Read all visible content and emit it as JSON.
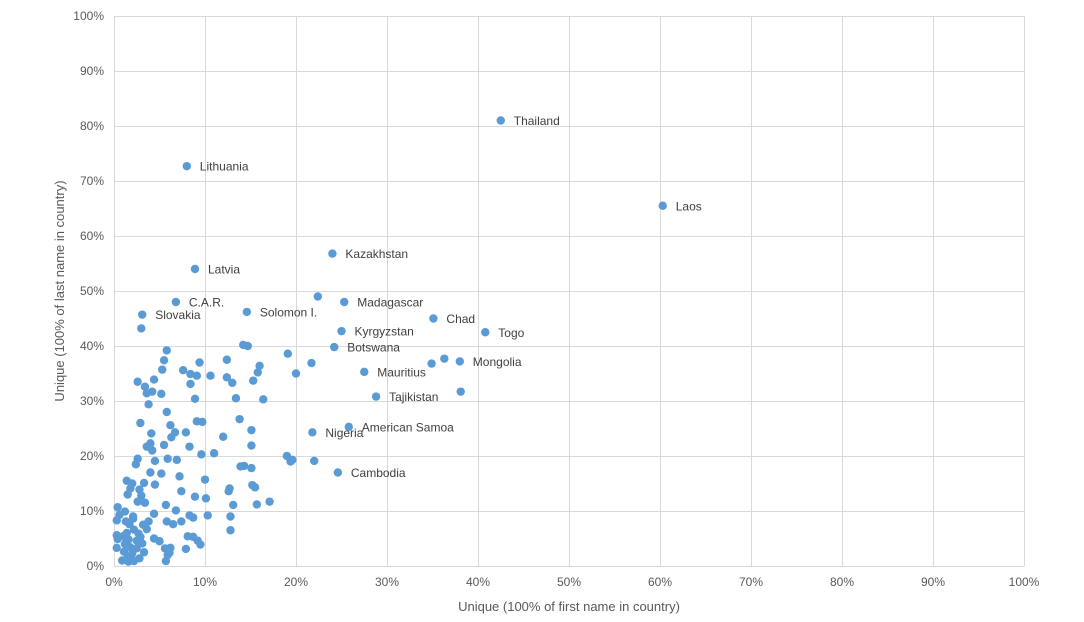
{
  "chart_data": {
    "type": "scatter",
    "title": "",
    "xlabel": "Unique (100% of first name in country)",
    "ylabel": "Unique (100% of last name in country)",
    "xlim": [
      0,
      100
    ],
    "ylim": [
      0,
      100
    ],
    "x_ticks": [
      "0%",
      "10%",
      "20%",
      "30%",
      "40%",
      "50%",
      "60%",
      "70%",
      "80%",
      "90%",
      "100%"
    ],
    "y_ticks": [
      "0%",
      "10%",
      "20%",
      "30%",
      "40%",
      "50%",
      "60%",
      "70%",
      "80%",
      "90%",
      "100%"
    ],
    "grid": true,
    "legend": "none",
    "point_color": "#5b9bd5",
    "labeled_points": [
      {
        "label": "Thailand",
        "x": 42.5,
        "y": 81.0
      },
      {
        "label": "Lithuania",
        "x": 8.0,
        "y": 72.7
      },
      {
        "label": "Laos",
        "x": 60.3,
        "y": 65.5
      },
      {
        "label": "Kazakhstan",
        "x": 24.0,
        "y": 56.8
      },
      {
        "label": "Latvia",
        "x": 8.9,
        "y": 54.0
      },
      {
        "label": "C.A.R.",
        "x": 6.8,
        "y": 48.0
      },
      {
        "label": "Madagascar",
        "x": 25.3,
        "y": 48.0
      },
      {
        "label": "Slovakia",
        "x": 3.1,
        "y": 45.7
      },
      {
        "label": "Solomon I.",
        "x": 14.6,
        "y": 46.2
      },
      {
        "label": "Chad",
        "x": 35.1,
        "y": 45.0
      },
      {
        "label": "Kyrgyzstan",
        "x": 25.0,
        "y": 42.7
      },
      {
        "label": "Togo",
        "x": 40.8,
        "y": 42.5
      },
      {
        "label": "Botswana",
        "x": 24.2,
        "y": 39.8
      },
      {
        "label": "Mongolia",
        "x": 38.0,
        "y": 37.2
      },
      {
        "label": "Mauritius",
        "x": 27.5,
        "y": 35.3
      },
      {
        "label": "Tajikistan",
        "x": 28.8,
        "y": 30.8
      },
      {
        "label": "American Samoa",
        "x": 25.8,
        "y": 25.3
      },
      {
        "label": "Nigeria",
        "x": 21.8,
        "y": 24.3
      },
      {
        "label": "Cambodia",
        "x": 24.6,
        "y": 17.0
      }
    ],
    "points": [
      [
        22.4,
        49.0
      ],
      [
        3.0,
        43.2
      ],
      [
        5.8,
        39.2
      ],
      [
        14.2,
        40.2
      ],
      [
        14.7,
        40.0
      ],
      [
        34.9,
        36.8
      ],
      [
        36.3,
        37.7
      ],
      [
        38.1,
        31.7
      ],
      [
        19.1,
        38.6
      ],
      [
        21.7,
        36.9
      ],
      [
        5.5,
        37.4
      ],
      [
        9.4,
        37.0
      ],
      [
        12.4,
        37.5
      ],
      [
        16.0,
        36.4
      ],
      [
        5.3,
        35.7
      ],
      [
        7.6,
        35.6
      ],
      [
        8.4,
        34.9
      ],
      [
        10.6,
        34.6
      ],
      [
        15.8,
        35.2
      ],
      [
        20.0,
        35.0
      ],
      [
        9.1,
        34.6
      ],
      [
        12.4,
        34.3
      ],
      [
        15.3,
        33.7
      ],
      [
        2.6,
        33.5
      ],
      [
        4.4,
        33.9
      ],
      [
        8.4,
        33.1
      ],
      [
        13.0,
        33.3
      ],
      [
        3.4,
        32.6
      ],
      [
        3.6,
        31.4
      ],
      [
        4.2,
        31.7
      ],
      [
        5.2,
        31.3
      ],
      [
        8.9,
        30.4
      ],
      [
        13.4,
        30.5
      ],
      [
        16.4,
        30.3
      ],
      [
        3.8,
        29.4
      ],
      [
        5.8,
        28.0
      ],
      [
        13.8,
        26.7
      ],
      [
        2.9,
        26.0
      ],
      [
        6.2,
        25.6
      ],
      [
        9.1,
        26.3
      ],
      [
        9.7,
        26.2
      ],
      [
        15.1,
        24.7
      ],
      [
        6.7,
        24.3
      ],
      [
        4.1,
        24.1
      ],
      [
        7.9,
        24.3
      ],
      [
        6.3,
        23.4
      ],
      [
        12.0,
        23.5
      ],
      [
        4.0,
        22.3
      ],
      [
        3.6,
        21.7
      ],
      [
        5.5,
        22.0
      ],
      [
        8.3,
        21.7
      ],
      [
        15.1,
        21.9
      ],
      [
        4.2,
        21.0
      ],
      [
        11.0,
        20.5
      ],
      [
        9.6,
        20.3
      ],
      [
        2.6,
        19.5
      ],
      [
        5.9,
        19.5
      ],
      [
        6.9,
        19.3
      ],
      [
        4.5,
        19.1
      ],
      [
        19.0,
        20.0
      ],
      [
        19.4,
        19.0
      ],
      [
        19.6,
        19.3
      ],
      [
        22.0,
        19.1
      ],
      [
        2.4,
        18.5
      ],
      [
        13.9,
        18.1
      ],
      [
        14.3,
        18.2
      ],
      [
        15.1,
        17.8
      ],
      [
        4.0,
        17.0
      ],
      [
        5.2,
        16.8
      ],
      [
        7.2,
        16.3
      ],
      [
        10.0,
        15.7
      ],
      [
        1.4,
        15.5
      ],
      [
        2.0,
        15.0
      ],
      [
        3.3,
        15.1
      ],
      [
        4.5,
        14.8
      ],
      [
        15.2,
        14.7
      ],
      [
        15.5,
        14.3
      ],
      [
        1.8,
        14.1
      ],
      [
        2.8,
        13.9
      ],
      [
        7.4,
        13.6
      ],
      [
        12.6,
        13.6
      ],
      [
        12.7,
        14.1
      ],
      [
        1.5,
        13.0
      ],
      [
        3.0,
        12.8
      ],
      [
        8.9,
        12.6
      ],
      [
        10.1,
        12.3
      ],
      [
        17.1,
        11.7
      ],
      [
        15.7,
        11.2
      ],
      [
        2.6,
        11.7
      ],
      [
        3.4,
        11.5
      ],
      [
        5.7,
        11.1
      ],
      [
        13.1,
        11.1
      ],
      [
        0.4,
        10.7
      ],
      [
        1.2,
        9.9
      ],
      [
        6.8,
        10.1
      ],
      [
        10.3,
        9.2
      ],
      [
        12.8,
        9.0
      ],
      [
        0.6,
        9.3
      ],
      [
        2.1,
        9.0
      ],
      [
        4.4,
        9.5
      ],
      [
        8.3,
        9.2
      ],
      [
        8.7,
        8.8
      ],
      [
        0.3,
        8.3
      ],
      [
        1.3,
        8.1
      ],
      [
        2.1,
        8.6
      ],
      [
        3.8,
        8.1
      ],
      [
        5.8,
        8.1
      ],
      [
        7.4,
        8.1
      ],
      [
        1.7,
        7.6
      ],
      [
        3.2,
        7.5
      ],
      [
        6.5,
        7.6
      ],
      [
        2.2,
        6.6
      ],
      [
        3.6,
        6.7
      ],
      [
        12.8,
        6.5
      ],
      [
        1.4,
        6.0
      ],
      [
        2.7,
        5.9
      ],
      [
        0.3,
        5.6
      ],
      [
        1.0,
        5.4
      ],
      [
        2.9,
        5.3
      ],
      [
        4.4,
        5.0
      ],
      [
        8.1,
        5.4
      ],
      [
        8.7,
        5.3
      ],
      [
        0.4,
        4.9
      ],
      [
        1.6,
        4.8
      ],
      [
        2.5,
        4.6
      ],
      [
        5.0,
        4.5
      ],
      [
        9.2,
        4.6
      ],
      [
        1.2,
        4.0
      ],
      [
        3.1,
        4.1
      ],
      [
        9.5,
        3.9
      ],
      [
        0.3,
        3.3
      ],
      [
        1.8,
        3.4
      ],
      [
        2.5,
        3.2
      ],
      [
        5.6,
        3.2
      ],
      [
        6.2,
        3.3
      ],
      [
        7.9,
        3.1
      ],
      [
        1.1,
        2.6
      ],
      [
        2.0,
        2.3
      ],
      [
        3.3,
        2.5
      ],
      [
        6.1,
        2.4
      ],
      [
        1.5,
        1.6
      ],
      [
        2.8,
        1.4
      ],
      [
        5.9,
        2.0
      ],
      [
        0.9,
        1.0
      ],
      [
        1.6,
        0.8
      ],
      [
        2.2,
        0.9
      ],
      [
        5.7,
        0.9
      ],
      [
        1.9,
        1.9
      ]
    ]
  }
}
